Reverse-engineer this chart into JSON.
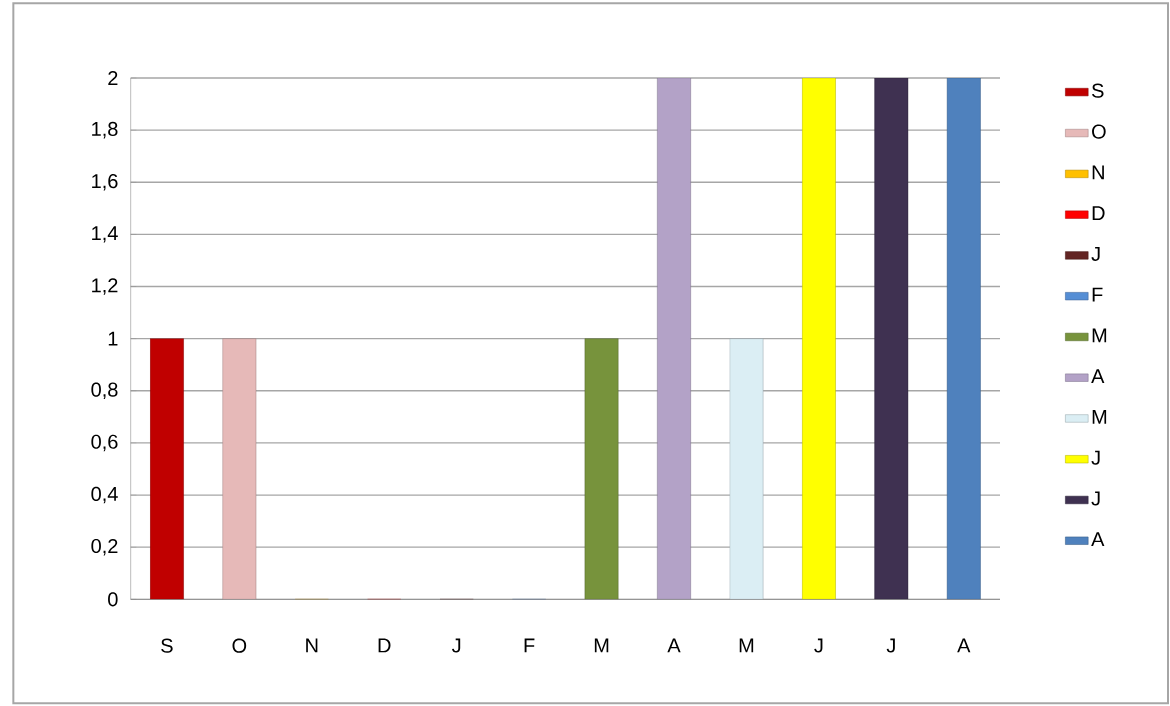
{
  "chart_data": {
    "type": "bar",
    "categories": [
      "S",
      "O",
      "N",
      "D",
      "J",
      "F",
      "M",
      "A",
      "M",
      "J",
      "J",
      "A"
    ],
    "series": [
      {
        "name": "S",
        "color": "#c00000",
        "values": [
          1,
          null,
          null,
          null,
          null,
          null,
          null,
          null,
          null,
          null,
          null,
          null
        ]
      },
      {
        "name": "O",
        "color": "#e6b9b8",
        "values": [
          null,
          1,
          null,
          null,
          null,
          null,
          null,
          null,
          null,
          null,
          null,
          null
        ]
      },
      {
        "name": "N",
        "color": "#ffc000",
        "values": [
          null,
          null,
          0,
          null,
          null,
          null,
          null,
          null,
          null,
          null,
          null,
          null
        ]
      },
      {
        "name": "D",
        "color": "#ff0000",
        "values": [
          null,
          null,
          null,
          0,
          null,
          null,
          null,
          null,
          null,
          null,
          null,
          null
        ]
      },
      {
        "name": "J",
        "color": "#632523",
        "values": [
          null,
          null,
          null,
          null,
          0,
          null,
          null,
          null,
          null,
          null,
          null,
          null
        ]
      },
      {
        "name": "F",
        "color": "#558ed5",
        "values": [
          null,
          null,
          null,
          null,
          null,
          0,
          null,
          null,
          null,
          null,
          null,
          null
        ]
      },
      {
        "name": "M",
        "color": "#77933c",
        "values": [
          null,
          null,
          null,
          null,
          null,
          null,
          1,
          null,
          null,
          null,
          null,
          null
        ]
      },
      {
        "name": "A",
        "color": "#b3a2c7",
        "values": [
          null,
          null,
          null,
          null,
          null,
          null,
          null,
          2,
          null,
          null,
          null,
          null
        ]
      },
      {
        "name": "M",
        "color": "#dbeef4",
        "values": [
          null,
          null,
          null,
          null,
          null,
          null,
          null,
          null,
          1,
          null,
          null,
          null
        ]
      },
      {
        "name": "J",
        "color": "#ffff00",
        "values": [
          null,
          null,
          null,
          null,
          null,
          null,
          null,
          null,
          null,
          2,
          null,
          null
        ]
      },
      {
        "name": "J",
        "color": "#3f3151",
        "values": [
          null,
          null,
          null,
          null,
          null,
          null,
          null,
          null,
          null,
          null,
          2,
          null
        ]
      },
      {
        "name": "A",
        "color": "#4f81bd",
        "values": [
          null,
          null,
          null,
          null,
          null,
          null,
          null,
          null,
          null,
          null,
          null,
          2
        ]
      }
    ],
    "ylim": [
      0,
      2
    ],
    "yticks": [
      0,
      {
        "value": 0.2,
        "label": "0,2"
      },
      {
        "value": 0.4,
        "label": "0,4"
      },
      {
        "value": 0.6,
        "label": "0,6"
      },
      {
        "value": 0.8,
        "label": "0,8"
      },
      1,
      {
        "value": 1.2,
        "label": "1,2"
      },
      {
        "value": 1.4,
        "label": "1,4"
      },
      {
        "value": 1.6,
        "label": "1,6"
      },
      {
        "value": 1.8,
        "label": "1,8"
      },
      2
    ],
    "grid": "y",
    "legend": "right"
  }
}
